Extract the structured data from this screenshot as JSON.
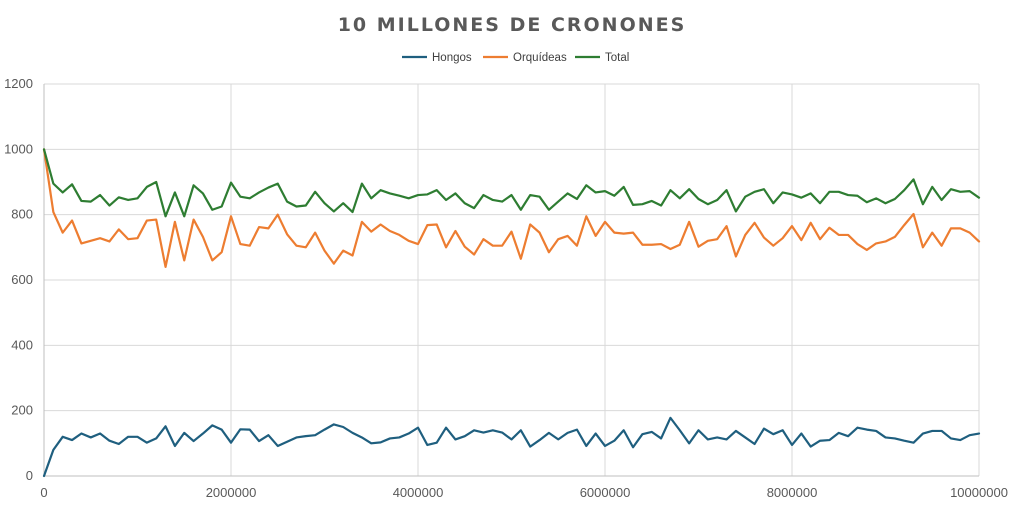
{
  "chart_data": {
    "type": "line",
    "title": "10 MILLONES DE CRONONES",
    "xlabel": "",
    "ylabel": "",
    "xlim": [
      0,
      10000000
    ],
    "ylim": [
      0,
      1200
    ],
    "x_ticks": [
      0,
      2000000,
      4000000,
      6000000,
      8000000,
      10000000
    ],
    "y_ticks": [
      0,
      200,
      400,
      600,
      800,
      1000,
      1200
    ],
    "x_tick_labels": [
      "0",
      "2000000",
      "4000000",
      "6000000",
      "8000000",
      "10000000"
    ],
    "y_tick_labels": [
      "0",
      "200",
      "400",
      "600",
      "800",
      "1000",
      "1200"
    ],
    "grid": true,
    "legend_position": "top-center",
    "x": [
      0,
      100000,
      200000,
      300000,
      400000,
      500000,
      600000,
      700000,
      800000,
      900000,
      1000000,
      1100000,
      1200000,
      1300000,
      1400000,
      1500000,
      1600000,
      1700000,
      1800000,
      1900000,
      2000000,
      2100000,
      2200000,
      2300000,
      2400000,
      2500000,
      2600000,
      2700000,
      2800000,
      2900000,
      3000000,
      3100000,
      3200000,
      3300000,
      3400000,
      3500000,
      3600000,
      3700000,
      3800000,
      3900000,
      4000000,
      4100000,
      4200000,
      4300000,
      4400000,
      4500000,
      4600000,
      4700000,
      4800000,
      4900000,
      5000000,
      5100000,
      5200000,
      5300000,
      5400000,
      5500000,
      5600000,
      5700000,
      5800000,
      5900000,
      6000000,
      6100000,
      6200000,
      6300000,
      6400000,
      6500000,
      6600000,
      6700000,
      6800000,
      6900000,
      7000000,
      7100000,
      7200000,
      7300000,
      7400000,
      7500000,
      7600000,
      7700000,
      7800000,
      7900000,
      8000000,
      8100000,
      8200000,
      8300000,
      8400000,
      8500000,
      8600000,
      8700000,
      8800000,
      8900000,
      9000000,
      9100000,
      9200000,
      9300000,
      9400000,
      9500000,
      9600000,
      9700000,
      9800000,
      9900000,
      10000000
    ],
    "series": [
      {
        "name": "Hongos",
        "color": "#1f5f7f",
        "values": [
          0,
          80,
          120,
          110,
          130,
          118,
          130,
          108,
          98,
          120,
          120,
          102,
          115,
          152,
          92,
          132,
          107,
          130,
          155,
          142,
          102,
          143,
          142,
          107,
          125,
          92,
          105,
          118,
          122,
          125,
          142,
          158,
          150,
          132,
          118,
          100,
          103,
          115,
          118,
          130,
          148,
          95,
          102,
          148,
          112,
          122,
          140,
          133,
          140,
          133,
          112,
          140,
          90,
          110,
          132,
          112,
          132,
          142,
          92,
          130,
          92,
          108,
          140,
          88,
          128,
          135,
          115,
          178,
          140,
          100,
          140,
          112,
          118,
          112,
          138,
          118,
          98,
          145,
          128,
          140,
          95,
          130,
          90,
          108,
          110,
          132,
          122,
          148,
          142,
          138,
          118,
          115,
          108,
          102,
          130,
          138,
          138,
          115,
          110,
          125,
          130
        ]
      },
      {
        "name": "Orquídeas",
        "color": "#ed7d31",
        "values": [
          1000,
          808,
          745,
          782,
          712,
          720,
          728,
          718,
          755,
          725,
          728,
          782,
          785,
          640,
          778,
          660,
          785,
          732,
          660,
          685,
          795,
          710,
          705,
          762,
          758,
          800,
          740,
          705,
          700,
          745,
          690,
          650,
          690,
          675,
          778,
          748,
          770,
          750,
          738,
          720,
          710,
          768,
          770,
          700,
          750,
          702,
          678,
          725,
          705,
          705,
          748,
          665,
          770,
          745,
          685,
          725,
          735,
          705,
          795,
          735,
          778,
          745,
          742,
          745,
          708,
          708,
          710,
          695,
          708,
          778,
          702,
          720,
          725,
          765,
          672,
          738,
          775,
          730,
          705,
          728,
          765,
          722,
          775,
          725,
          760,
          738,
          738,
          710,
          692,
          712,
          718,
          732,
          768,
          802,
          700,
          745,
          705,
          758,
          758,
          745,
          718
        ]
      },
      {
        "name": "Total",
        "color": "#2e7d32",
        "values": [
          1000,
          895,
          868,
          893,
          842,
          840,
          860,
          828,
          853,
          845,
          850,
          885,
          900,
          795,
          868,
          795,
          890,
          865,
          815,
          825,
          898,
          855,
          850,
          868,
          883,
          895,
          840,
          825,
          828,
          870,
          835,
          810,
          835,
          808,
          895,
          850,
          875,
          865,
          858,
          850,
          860,
          862,
          875,
          845,
          865,
          835,
          820,
          860,
          845,
          840,
          860,
          815,
          860,
          855,
          815,
          840,
          865,
          848,
          890,
          868,
          872,
          858,
          885,
          830,
          832,
          842,
          828,
          875,
          850,
          878,
          848,
          832,
          845,
          875,
          810,
          855,
          870,
          878,
          835,
          868,
          862,
          852,
          865,
          835,
          870,
          870,
          860,
          858,
          838,
          850,
          835,
          848,
          875,
          908,
          832,
          885,
          845,
          878,
          870,
          872,
          852
        ]
      }
    ]
  }
}
